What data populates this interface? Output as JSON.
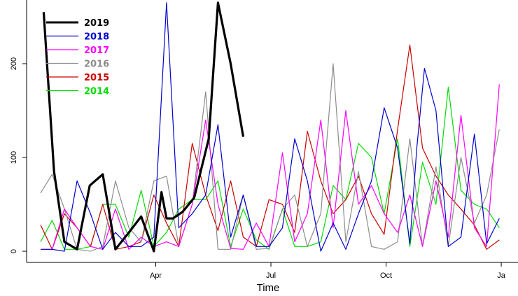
{
  "chart_data": {
    "type": "line",
    "title": "",
    "xlabel": "Time",
    "ylabel": "",
    "x_ticks": [
      {
        "label": "Apr",
        "t": 3
      },
      {
        "label": "Jul",
        "t": 6
      },
      {
        "label": "Oct",
        "t": 9
      },
      {
        "label": "Ja",
        "t": 12
      }
    ],
    "y_ticks": [
      0,
      100,
      200
    ],
    "xlim": [
      0.0,
      12.4
    ],
    "ylim": [
      -15,
      265
    ],
    "legend_position": "top-left",
    "series": [
      {
        "name": "2019",
        "color": "#000000",
        "t": [
          0.08,
          0.35,
          0.62,
          0.95,
          1.28,
          1.62,
          1.95,
          2.3,
          2.62,
          2.95,
          3.15,
          3.28,
          3.45,
          3.7,
          4.0,
          4.38,
          4.62,
          4.95,
          5.28
        ],
        "values": [
          255,
          85,
          10,
          2,
          70,
          82,
          2,
          20,
          37,
          0,
          63,
          35,
          35,
          42,
          57,
          120,
          265,
          200,
          122
        ]
      },
      {
        "name": "2018",
        "color": "#0000cc",
        "t": [
          0.0,
          0.3,
          0.62,
          0.95,
          1.3,
          1.62,
          1.95,
          2.3,
          2.62,
          2.95,
          3.28,
          3.6,
          3.95,
          4.3,
          4.62,
          4.95,
          5.28,
          5.62,
          5.95,
          6.3,
          6.62,
          6.95,
          7.3,
          7.62,
          7.95,
          8.28,
          8.62,
          8.95,
          9.3,
          9.62,
          9.8,
          10.0,
          10.3,
          10.62,
          10.95,
          11.3,
          11.62,
          11.95
        ],
        "values": [
          2,
          2,
          0,
          75,
          40,
          2,
          20,
          5,
          5,
          15,
          265,
          25,
          40,
          60,
          135,
          15,
          60,
          5,
          5,
          25,
          120,
          75,
          0,
          30,
          2,
          40,
          75,
          153,
          110,
          8,
          110,
          195,
          150,
          5,
          15,
          125,
          8,
          35
        ]
      },
      {
        "name": "2017",
        "color": "#ff00ff",
        "t": [
          0.0,
          0.3,
          0.62,
          0.95,
          1.3,
          1.62,
          1.95,
          2.3,
          2.62,
          2.95,
          3.28,
          3.6,
          3.95,
          4.3,
          4.62,
          4.95,
          5.28,
          5.62,
          5.95,
          6.3,
          6.62,
          6.95,
          7.3,
          7.62,
          7.95,
          8.28,
          8.62,
          8.95,
          9.3,
          9.62,
          9.95,
          10.3,
          10.62,
          10.95,
          11.3,
          11.62,
          11.95
        ],
        "values": [
          2,
          2,
          45,
          25,
          5,
          2,
          45,
          2,
          15,
          5,
          10,
          5,
          50,
          140,
          50,
          3,
          2,
          30,
          5,
          105,
          10,
          40,
          140,
          25,
          150,
          50,
          70,
          40,
          20,
          60,
          5,
          75,
          15,
          145,
          25,
          5,
          178
        ]
      },
      {
        "name": "2016",
        "color": "#8c8c8c",
        "t": [
          0.0,
          0.3,
          0.62,
          0.95,
          1.3,
          1.62,
          1.95,
          2.3,
          2.62,
          2.95,
          3.28,
          3.6,
          3.95,
          4.3,
          4.62,
          4.95,
          5.28,
          5.62,
          5.95,
          6.3,
          6.62,
          6.95,
          7.3,
          7.62,
          7.95,
          8.28,
          8.62,
          8.95,
          9.3,
          9.62,
          9.95,
          10.3,
          10.62,
          10.95,
          11.3,
          11.62,
          11.95
        ],
        "values": [
          62,
          82,
          45,
          2,
          0,
          5,
          75,
          25,
          10,
          75,
          80,
          5,
          50,
          170,
          2,
          2,
          60,
          2,
          3,
          45,
          60,
          5,
          40,
          200,
          10,
          85,
          5,
          2,
          10,
          120,
          5,
          90,
          5,
          100,
          30,
          60,
          130
        ]
      },
      {
        "name": "2015",
        "color": "#cc0000",
        "t": [
          0.0,
          0.3,
          0.62,
          0.95,
          1.3,
          1.62,
          1.95,
          2.3,
          2.62,
          2.95,
          3.28,
          3.6,
          3.95,
          4.3,
          4.62,
          4.95,
          5.28,
          5.62,
          5.95,
          6.3,
          6.62,
          6.95,
          7.3,
          7.62,
          7.95,
          8.28,
          8.62,
          8.95,
          9.3,
          9.62,
          9.95,
          10.3,
          10.62,
          10.95,
          11.3,
          11.62,
          11.95
        ],
        "values": [
          28,
          2,
          40,
          25,
          5,
          50,
          2,
          5,
          10,
          60,
          30,
          5,
          115,
          60,
          22,
          75,
          15,
          5,
          55,
          50,
          20,
          128,
          75,
          40,
          55,
          80,
          40,
          18,
          130,
          220,
          110,
          80,
          60,
          45,
          28,
          2,
          12
        ]
      },
      {
        "name": "2014",
        "color": "#00dd00",
        "t": [
          0.0,
          0.3,
          0.62,
          0.95,
          1.3,
          1.62,
          1.95,
          2.3,
          2.62,
          2.95,
          3.28,
          3.6,
          3.95,
          4.3,
          4.62,
          4.95,
          5.28,
          5.62,
          5.95,
          6.3,
          6.62,
          6.95,
          7.3,
          7.62,
          7.95,
          8.28,
          8.62,
          8.95,
          9.3,
          9.62,
          9.95,
          10.3,
          10.62,
          10.95,
          11.3,
          11.62,
          11.95
        ],
        "values": [
          10,
          33,
          2,
          2,
          5,
          50,
          50,
          15,
          65,
          5,
          20,
          45,
          55,
          55,
          75,
          5,
          45,
          12,
          2,
          45,
          5,
          5,
          10,
          70,
          55,
          115,
          100,
          40,
          120,
          5,
          95,
          50,
          175,
          65,
          50,
          45,
          25
        ]
      }
    ]
  }
}
